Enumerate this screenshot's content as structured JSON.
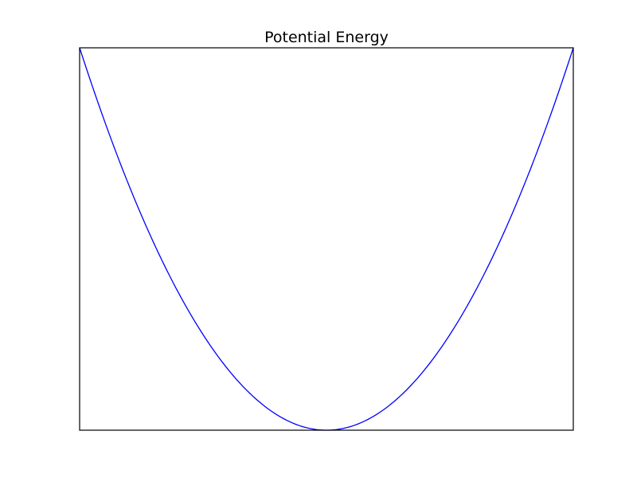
{
  "chart_data": {
    "type": "line",
    "title": "Potential Energy",
    "xlabel": "",
    "ylabel": "",
    "xlim": [
      -1,
      1
    ],
    "ylim": [
      0,
      1
    ],
    "grid": false,
    "x_ticks_shown": false,
    "y_ticks_shown": false,
    "series": [
      {
        "color": "#0000ff",
        "function": "y = x^2",
        "x": [
          -1.0,
          -0.9,
          -0.8,
          -0.7,
          -0.6,
          -0.5,
          -0.4,
          -0.3,
          -0.2,
          -0.1,
          0.0,
          0.1,
          0.2,
          0.3,
          0.4,
          0.5,
          0.6,
          0.7,
          0.8,
          0.9,
          1.0
        ],
        "y": [
          1.0,
          0.81,
          0.64,
          0.49,
          0.36,
          0.25,
          0.16,
          0.09,
          0.04,
          0.01,
          0.0,
          0.01,
          0.04,
          0.09,
          0.16,
          0.25,
          0.36,
          0.49,
          0.64,
          0.81,
          1.0
        ]
      }
    ]
  }
}
